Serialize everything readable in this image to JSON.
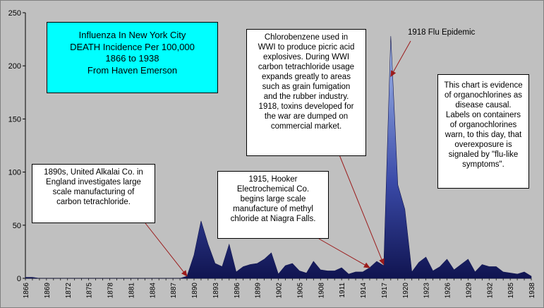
{
  "chart_data": {
    "type": "area",
    "x": [
      1866,
      1867,
      1868,
      1869,
      1870,
      1871,
      1872,
      1873,
      1874,
      1875,
      1876,
      1877,
      1878,
      1879,
      1880,
      1881,
      1882,
      1883,
      1884,
      1885,
      1886,
      1887,
      1888,
      1889,
      1890,
      1891,
      1892,
      1893,
      1894,
      1895,
      1896,
      1897,
      1898,
      1899,
      1900,
      1901,
      1902,
      1903,
      1904,
      1905,
      1906,
      1907,
      1908,
      1909,
      1910,
      1911,
      1912,
      1913,
      1914,
      1915,
      1916,
      1917,
      1918,
      1919,
      1920,
      1921,
      1922,
      1923,
      1924,
      1925,
      1926,
      1927,
      1928,
      1929,
      1930,
      1931,
      1932,
      1933,
      1934,
      1935,
      1936,
      1937,
      1938
    ],
    "y": [
      1,
      1,
      0,
      0,
      0,
      0,
      0,
      0,
      0,
      0,
      0,
      0,
      0,
      0,
      0,
      0,
      0,
      0,
      0,
      0,
      0,
      0,
      0,
      2,
      22,
      54,
      32,
      14,
      11,
      32,
      6,
      11,
      13,
      14,
      18,
      24,
      4,
      12,
      14,
      7,
      5,
      16,
      8,
      7,
      7,
      10,
      4,
      6,
      6,
      10,
      16,
      12,
      228,
      88,
      65,
      6,
      15,
      20,
      7,
      11,
      18,
      8,
      13,
      18,
      6,
      13,
      11,
      11,
      6,
      5,
      4,
      6,
      2
    ],
    "xticks": [
      "1866",
      "1869",
      "1872",
      "1875",
      "1878",
      "1881",
      "1884",
      "1887",
      "1890",
      "1893",
      "1896",
      "1899",
      "1902",
      "1905",
      "1908",
      "1911",
      "1914",
      "1917",
      "1920",
      "1923",
      "1926",
      "1929",
      "1932",
      "1935",
      "1938"
    ],
    "yticks": [
      "0",
      "50",
      "100",
      "150",
      "200",
      "250"
    ],
    "ylim": [
      0,
      250
    ],
    "xlim": [
      1866,
      1938
    ],
    "grid": false,
    "colors": {
      "fill_top": "#a8c0f0",
      "fill_mid": "#3a4aa8",
      "fill_bottom": "#101450",
      "arrow": "#9b1b1b",
      "title_box": "#00ffff",
      "plot_bg": "#c0c0c0"
    }
  },
  "title_box": {
    "lines": [
      "Influenza In New York City",
      "DEATH Incidence Per 100,000",
      "1866 to 1938",
      "From Haven Emerson"
    ]
  },
  "annotations": {
    "box_1890s": {
      "lines": [
        "1890s, United Alkalai Co. in",
        "England investigates large",
        "scale manufacturing of",
        "carbon tetrachloride."
      ],
      "arrow_to": [
        1889,
        2
      ]
    },
    "box_1915": {
      "lines": [
        "1915, Hooker",
        "Electrochemical Co.",
        "begins large scale",
        "manufacture of methyl",
        "chloride at Niagra Falls."
      ],
      "arrow_to": [
        1915,
        10
      ]
    },
    "box_chloro": {
      "lines": [
        "Chlorobenzene used in",
        "WWI to produce picric acid",
        "explosives.  During WWI",
        "carbon tetrachloride usage",
        "expands greatly to areas",
        "such as grain fumigation",
        "and the rubber industry.",
        "1918, toxins developed for",
        "the war are dumped on",
        "commercial market."
      ],
      "arrow_to": [
        1917,
        13
      ]
    },
    "box_evidence": {
      "lines": [
        "This chart is evidence",
        "of organochlorines as",
        "disease causal.",
        "Labels on containers",
        "of organochlorines",
        "warn, to this day,  that",
        "overexposure is",
        "signaled by \"flu-like",
        "symptoms\"."
      ]
    },
    "label_1918": {
      "text": "1918 Flu Epidemic",
      "arrow_to": [
        1918,
        190
      ]
    }
  }
}
